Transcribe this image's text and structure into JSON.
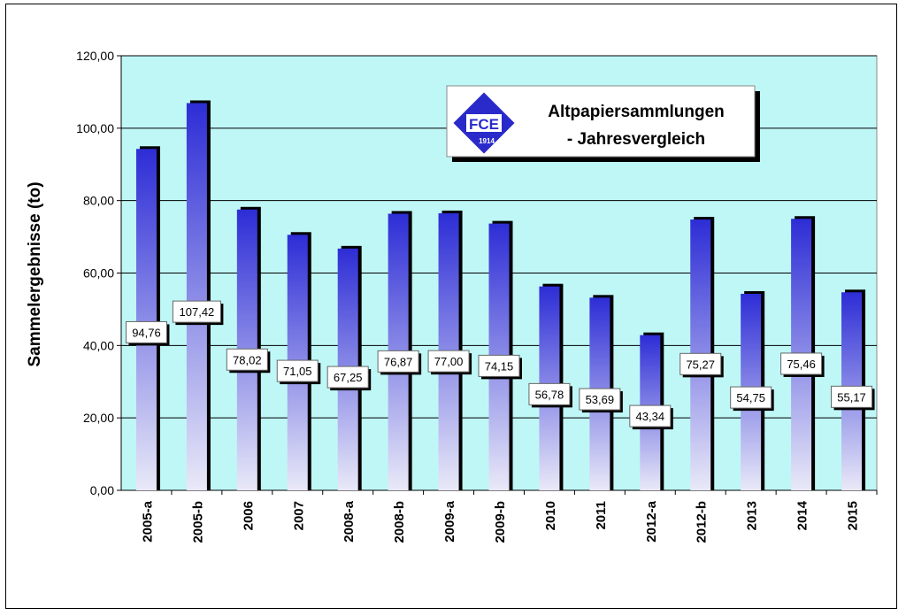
{
  "chart_data": {
    "type": "bar",
    "title_line1": "Altpapiersammlungen",
    "title_line2": "- Jahresvergleich",
    "ylabel": "Sammelergebnisse (to)",
    "xlabel": "",
    "ylim": [
      0,
      120
    ],
    "yticks": [
      0,
      20,
      40,
      60,
      80,
      100,
      120
    ],
    "ytick_labels": [
      "0,00",
      "20,00",
      "40,00",
      "60,00",
      "80,00",
      "100,00",
      "120,00"
    ],
    "categories": [
      "2005-a",
      "2005-b",
      "2006",
      "2007",
      "2008-a",
      "2008-b",
      "2009-a",
      "2009-b",
      "2010",
      "2011",
      "2012-a",
      "2012-b",
      "2013",
      "2014",
      "2015"
    ],
    "values": [
      94.76,
      107.42,
      78.02,
      71.05,
      67.25,
      76.87,
      77.0,
      74.15,
      56.78,
      53.69,
      43.34,
      75.27,
      54.75,
      75.46,
      55.17
    ],
    "value_labels": [
      "94,76",
      "107,42",
      "78,02",
      "71,05",
      "67,25",
      "76,87",
      "77,00",
      "74,15",
      "56,78",
      "53,69",
      "43,34",
      "75,27",
      "54,75",
      "75,46",
      "55,17"
    ],
    "grid": true,
    "legend": "none",
    "colors": {
      "plot_background": "#BFF7F7",
      "bar_top": "#2D2DD6",
      "bar_bottom": "#E9E9F8",
      "bar_shadow": "#000000"
    },
    "logo": {
      "text": "FCE",
      "year": "1914",
      "color": "#2A2ACB"
    }
  }
}
